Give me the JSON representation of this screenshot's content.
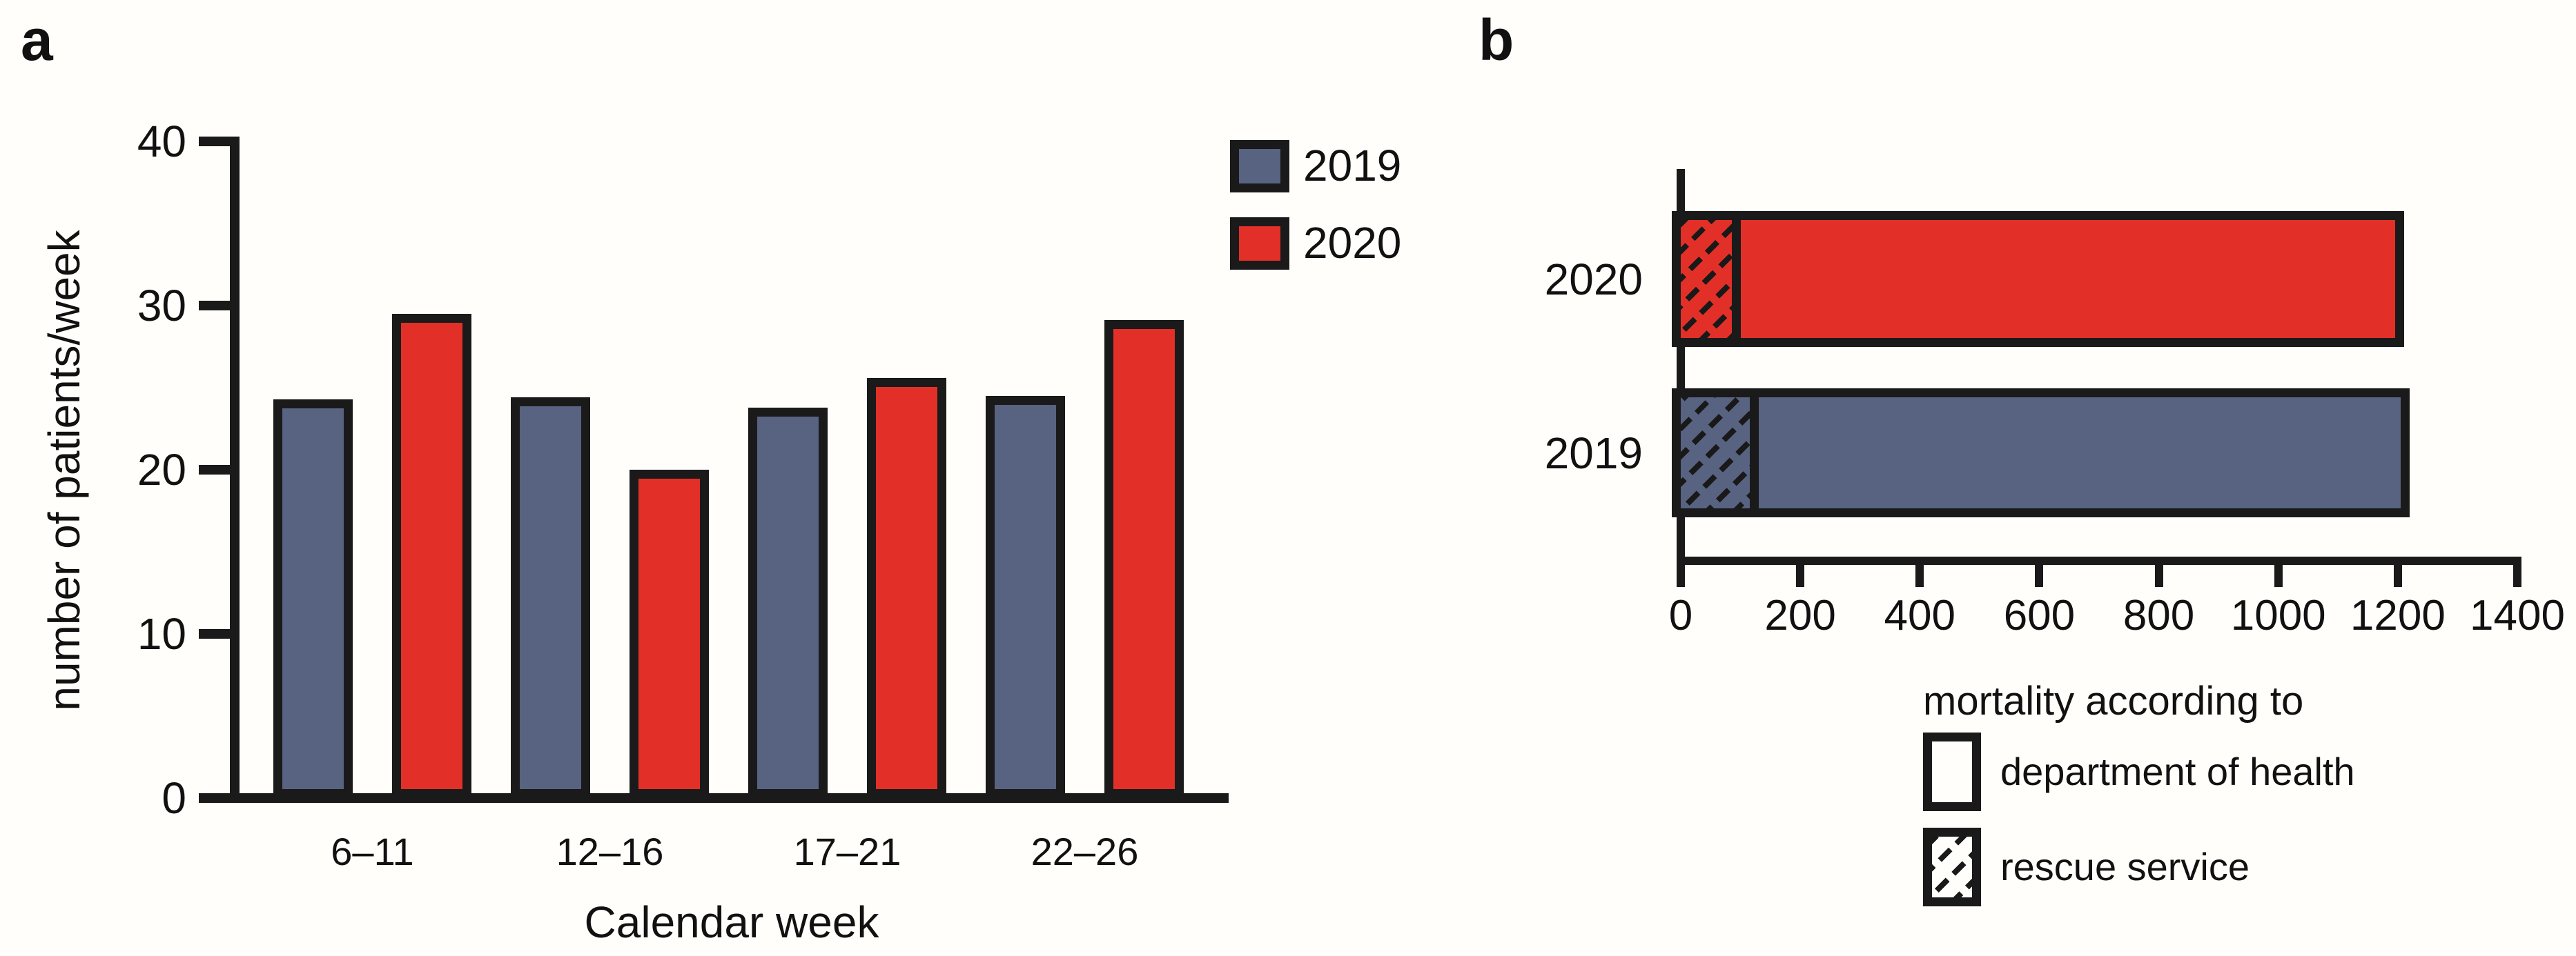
{
  "figure": {
    "background": "#fffefa",
    "panels": {
      "a_label": "a",
      "b_label": "b"
    }
  },
  "chart_data": [
    {
      "id": "a",
      "type": "bar",
      "title": "",
      "xlabel": "Calendar week",
      "ylabel": "number of patients/week",
      "categories": [
        "6–11",
        "12–16",
        "17–21",
        "22–26"
      ],
      "series": [
        {
          "name": "2019",
          "color": "#586281",
          "values": [
            24.3,
            24.4,
            23.8,
            24.5
          ]
        },
        {
          "name": "2020",
          "color": "#E23028",
          "values": [
            29.5,
            20.0,
            25.6,
            29.1
          ]
        }
      ],
      "ylim": [
        0,
        40
      ],
      "yticks": [
        0,
        10,
        20,
        30,
        40
      ],
      "grid": false,
      "legend_position": "top-right",
      "bar_outline_color": "#1a1a1a"
    },
    {
      "id": "b",
      "type": "horizontal-stacked-bar",
      "xlim": [
        0,
        1400
      ],
      "xticks": [
        0,
        200,
        400,
        600,
        800,
        1000,
        1200,
        1400
      ],
      "rows": [
        {
          "label": "2020",
          "color": "#E23028",
          "total": 1210,
          "hatched": 100
        },
        {
          "label": "2019",
          "color": "#586281",
          "total": 1220,
          "hatched": 130
        }
      ],
      "legend_title": "mortality according to",
      "legend": [
        {
          "label": "department of health",
          "pattern": "solid"
        },
        {
          "label": "rescue service",
          "pattern": "hatched"
        }
      ],
      "bar_outline_color": "#1a1a1a"
    }
  ]
}
